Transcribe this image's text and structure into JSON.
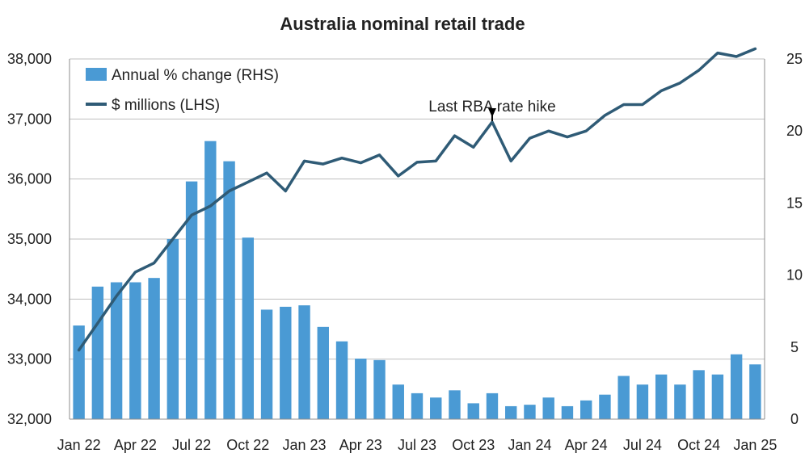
{
  "chart_data": {
    "type": "bar+line",
    "title": "Australia nominal retail trade",
    "categories": [
      "Jan 22",
      "Feb 22",
      "Mar 22",
      "Apr 22",
      "May 22",
      "Jun 22",
      "Jul 22",
      "Aug 22",
      "Sep 22",
      "Oct 22",
      "Nov 22",
      "Dec 22",
      "Jan 23",
      "Feb 23",
      "Mar 23",
      "Apr 23",
      "May 23",
      "Jun 23",
      "Jul 23",
      "Aug 23",
      "Sep 23",
      "Oct 23",
      "Nov 23",
      "Dec 23",
      "Jan 24",
      "Feb 24",
      "Mar 24",
      "Apr 24",
      "May 24",
      "Jun 24",
      "Jul 24",
      "Aug 24",
      "Sep 24",
      "Oct 24",
      "Nov 24",
      "Dec 24",
      "Jan 25"
    ],
    "x_tick_labels": [
      "Jan 22",
      "Apr 22",
      "Jul 22",
      "Oct 22",
      "Jan 23",
      "Apr 23",
      "Jul 23",
      "Oct 23",
      "Jan 24",
      "Apr 24",
      "Jul 24",
      "Oct 24",
      "Jan 25"
    ],
    "x_tick_indices": [
      0,
      3,
      6,
      9,
      12,
      15,
      18,
      21,
      24,
      27,
      30,
      33,
      36
    ],
    "series": [
      {
        "name": "Annual % change (RHS)",
        "type": "bar",
        "axis": "right",
        "color": "#4A9AD4",
        "values": [
          6.5,
          9.2,
          9.5,
          9.5,
          9.8,
          12.5,
          16.5,
          19.3,
          17.9,
          12.6,
          7.6,
          7.8,
          7.9,
          6.4,
          5.4,
          4.2,
          4.1,
          2.4,
          1.8,
          1.5,
          2.0,
          1.1,
          1.8,
          0.9,
          1.0,
          1.5,
          0.9,
          1.3,
          1.7,
          3.0,
          2.4,
          3.1,
          2.4,
          3.4,
          3.1,
          4.5,
          3.8
        ]
      },
      {
        "name": "$ millions (LHS)",
        "type": "line",
        "axis": "left",
        "color": "#2F5B76",
        "values": [
          33150,
          33600,
          34050,
          34450,
          34600,
          35000,
          35400,
          35550,
          35800,
          35950,
          36100,
          35800,
          36300,
          36250,
          36350,
          36270,
          36400,
          36050,
          36280,
          36300,
          36720,
          36530,
          36950,
          36300,
          36680,
          36800,
          36700,
          36800,
          37060,
          37240,
          37240,
          37470,
          37600,
          37810,
          38100,
          38040,
          38170
        ]
      }
    ],
    "y_left": {
      "min": 32000,
      "max": 38000,
      "ticks": [
        "32,000",
        "33,000",
        "34,000",
        "35,000",
        "36,000",
        "37,000",
        "38,000"
      ]
    },
    "y_right": {
      "min": 0,
      "max": 25,
      "ticks": [
        "0",
        "5",
        "10",
        "15",
        "20",
        "25"
      ]
    },
    "legend": {
      "position": "top-left",
      "bar_label": "Annual % change (RHS)",
      "line_label": "$ millions (LHS)"
    },
    "annotation": {
      "text": "Last RBA rate hike",
      "category_index": 22
    },
    "grid": true
  }
}
